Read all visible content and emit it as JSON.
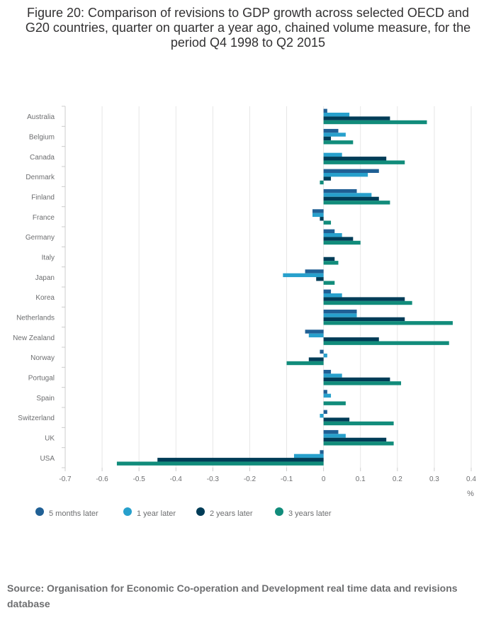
{
  "chart_data": {
    "type": "bar",
    "orientation": "horizontal",
    "title": "Figure 20: Comparison of revisions to GDP growth across selected OECD and G20 countries, quarter on quarter a year ago, chained volume measure, for the period Q4 1998 to Q2 2015",
    "xlabel": "%",
    "xlim": [
      -0.7,
      0.4
    ],
    "xticks": [
      -0.7,
      -0.6,
      -0.5,
      -0.4,
      -0.3,
      -0.2,
      -0.1,
      0,
      0.1,
      0.2,
      0.3,
      0.4
    ],
    "xtick_labels": [
      "-0.7",
      "-0.6",
      "-0.5",
      "-0.4",
      "-0.3",
      "-0.2",
      "-0.1",
      "0",
      "0.1",
      "0.2",
      "0.3",
      "0.4"
    ],
    "grid": true,
    "legend_position": "bottom-left",
    "categories": [
      "Australia",
      "Belgium",
      "Canada",
      "Denmark",
      "Finland",
      "France",
      "Germany",
      "Italy",
      "Japan",
      "Korea",
      "Netherlands",
      "New Zealand",
      "Norway",
      "Portugal",
      "Spain",
      "Switzerland",
      "UK",
      "USA"
    ],
    "series": [
      {
        "name": "5 months later",
        "color": "#206095",
        "values": [
          0.01,
          0.04,
          0.0,
          0.15,
          0.09,
          -0.03,
          0.03,
          0.0,
          -0.05,
          0.02,
          0.09,
          -0.05,
          -0.01,
          0.02,
          0.01,
          0.01,
          0.04,
          -0.01
        ]
      },
      {
        "name": "1 year later",
        "color": "#27a0cc",
        "values": [
          0.07,
          0.06,
          0.05,
          0.12,
          0.13,
          -0.03,
          0.05,
          0.0,
          -0.11,
          0.05,
          0.09,
          -0.04,
          0.01,
          0.05,
          0.02,
          -0.01,
          0.06,
          -0.08
        ]
      },
      {
        "name": "2 years later",
        "color": "#003c57",
        "values": [
          0.18,
          0.02,
          0.17,
          0.02,
          0.15,
          -0.01,
          0.08,
          0.03,
          -0.02,
          0.22,
          0.22,
          0.15,
          -0.04,
          0.18,
          0.0,
          0.07,
          0.17,
          -0.45
        ]
      },
      {
        "name": "3 years later",
        "color": "#118c7b",
        "values": [
          0.28,
          0.08,
          0.22,
          -0.01,
          0.18,
          0.02,
          0.1,
          0.04,
          0.03,
          0.24,
          0.35,
          0.34,
          -0.1,
          0.21,
          0.06,
          0.19,
          0.19,
          -0.56
        ]
      }
    ]
  },
  "source": "Source: Organisation for Economic Co-operation and Development real time data and revisions database"
}
